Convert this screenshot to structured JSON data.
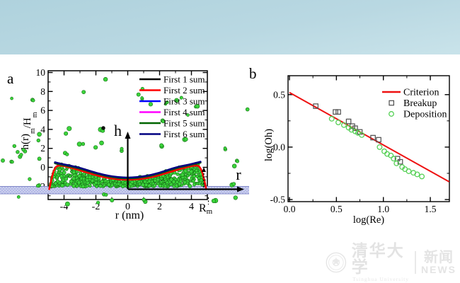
{
  "banner": {
    "color_top": "#afd2dd",
    "color_bottom": "#c9e3ea"
  },
  "colors": {
    "particle_fill": "#3bd43b",
    "particle_stroke": "#146e14",
    "band_fill": "#b3b9e6",
    "band_dot": "#e9ebf8",
    "band_edge": "#8288c8",
    "frame": "#000000",
    "criterion_red": "#ee1111",
    "breakup_gray": "#4d4d4d",
    "deposition_green": "#55d055"
  },
  "chart_data": [
    {
      "panel_label": "a",
      "type": "line",
      "xlabel": "r (nm)",
      "ylabel": "h(r)_m/H_m",
      "ylabel_parts": [
        [
          "h(r)",
          false
        ],
        [
          "m",
          true
        ],
        [
          "/H",
          false
        ],
        [
          "m",
          true
        ]
      ],
      "xlim": [
        -5,
        5
      ],
      "ylim": [
        -3.4,
        10.15
      ],
      "x_ticks": [
        "-4",
        "-2",
        "0",
        "2",
        "4"
      ],
      "x_tick_vals": [
        -4,
        -2,
        0,
        2,
        4
      ],
      "y_ticks": [
        "-2",
        "0",
        "2",
        "4",
        "6",
        "8",
        "10"
      ],
      "y_tick_vals": [
        -2,
        0,
        2,
        4,
        6,
        8,
        10
      ],
      "x_minor": [
        -3,
        -1,
        1,
        3
      ],
      "y_minor": [
        -3,
        -1,
        1,
        3,
        5,
        7,
        9
      ],
      "grid": false,
      "legend_position": "upper right",
      "legend": [
        {
          "label": "First 1 sum",
          "color": "#000000"
        },
        {
          "label": "First 2 sum",
          "color": "#ff0000"
        },
        {
          "label": "First 3 sum",
          "color": "#0000ff"
        },
        {
          "label": "First 4 sum",
          "color": "#ff00ff"
        },
        {
          "label": "First 5 sum",
          "color": "#006400"
        },
        {
          "label": "First 6 sum",
          "color": "#000080"
        }
      ],
      "shapes": {
        "bundle": {
          "x": [
            -4.57,
            -4.2,
            -3.6,
            -3.0,
            -2.4,
            -1.8,
            -1.2,
            -0.6,
            0,
            0.6,
            1.2,
            1.8,
            2.4,
            3.0,
            3.6,
            4.2,
            4.57
          ],
          "y": [
            0.46,
            0.3,
            0.1,
            -0.14,
            -0.44,
            -0.73,
            -0.96,
            -1.1,
            -1.15,
            -1.1,
            -0.96,
            -0.73,
            -0.42,
            -0.1,
            0.13,
            0.36,
            0.52
          ]
        },
        "rim": {
          "x": [
            -4.93,
            -4.83,
            -4.68,
            -4.5,
            -4.3,
            -4.0,
            -3.5,
            -3.0,
            -2.5,
            -2.0,
            -1.5,
            -1.0,
            -0.5,
            0,
            0.5,
            1.0,
            1.5,
            2.0,
            2.5,
            3.0,
            3.5,
            4.0,
            4.3,
            4.5,
            4.68,
            4.83,
            4.93
          ],
          "y": [
            -2.3,
            -1.55,
            -0.55,
            0.05,
            0.18,
            0.13,
            -0.08,
            -0.32,
            -0.57,
            -0.82,
            -1.03,
            -1.18,
            -1.27,
            -1.3,
            -1.27,
            -1.18,
            -1.03,
            -0.82,
            -0.57,
            -0.32,
            -0.08,
            0.13,
            0.18,
            0.05,
            -0.55,
            -1.55,
            -2.3
          ]
        }
      },
      "series": [
        {
          "name": "First 1 sum",
          "color": "#000000",
          "shape": "bundle",
          "dy": -0.03
        },
        {
          "name": "First 2 sum",
          "color": "#ff0000",
          "shape": "rim",
          "dy": 0
        },
        {
          "name": "First 3 sum",
          "color": "#0000ff",
          "shape": "bundle",
          "dy": 0.04
        },
        {
          "name": "First 4 sum",
          "color": "#ff00ff",
          "shape": "bundle",
          "dy": 0.01
        },
        {
          "name": "First 5 sum",
          "color": "#006400",
          "shape": "bundle",
          "dy": -0.01
        },
        {
          "name": "First 6 sum",
          "color": "#000080",
          "shape": "bundle",
          "dy": 0.07
        }
      ],
      "annotations": {
        "v_axis_label": "h",
        "h_axis_label": "r",
        "radius_label": "R",
        "radius_label_sub": "m"
      }
    },
    {
      "panel_label": "b",
      "type": "scatter",
      "xlabel": "log(Re)",
      "ylabel": "log(Oh)",
      "xlim": [
        -0.015,
        1.7
      ],
      "ylim": [
        -0.52,
        0.675
      ],
      "x_ticks": [
        "0.0",
        "0.5",
        "1.0",
        "1.5"
      ],
      "x_tick_vals": [
        0.0,
        0.5,
        1.0,
        1.5
      ],
      "y_ticks": [
        "-0.5",
        "0.0",
        "0.5"
      ],
      "y_tick_vals": [
        -0.5,
        0.0,
        0.5
      ],
      "x_minor": [
        0.25,
        0.75,
        1.25
      ],
      "y_minor": [
        -0.25,
        0.25
      ],
      "grid": false,
      "legend_position": "upper right",
      "legend": [
        {
          "label": "Criterion",
          "marker": "line",
          "color": "#ee1111"
        },
        {
          "label": "Breakup",
          "marker": "square",
          "color": "#4d4d4d"
        },
        {
          "label": "Deposition",
          "marker": "circle",
          "color": "#55d055"
        }
      ],
      "series": [
        {
          "name": "Criterion",
          "type": "line",
          "color": "#ee1111",
          "points": [
            [
              0,
              0.52
            ],
            [
              1.7,
              -0.33
            ]
          ]
        },
        {
          "name": "Breakup",
          "type": "scatter",
          "marker": "square-open",
          "color": "#4d4d4d",
          "points": [
            [
              0.28,
              0.39
            ],
            [
              0.49,
              0.335
            ],
            [
              0.52,
              0.335
            ],
            [
              0.63,
              0.245
            ],
            [
              0.67,
              0.2
            ],
            [
              0.7,
              0.18
            ],
            [
              0.75,
              0.145
            ],
            [
              0.89,
              0.09
            ],
            [
              0.95,
              0.07
            ],
            [
              1.15,
              -0.11
            ],
            [
              1.18,
              -0.14
            ]
          ]
        },
        {
          "name": "Deposition",
          "type": "scatter",
          "marker": "circle-open",
          "color": "#55d055",
          "points": [
            [
              0.45,
              0.27
            ],
            [
              0.52,
              0.235
            ],
            [
              0.58,
              0.21
            ],
            [
              0.63,
              0.185
            ],
            [
              0.66,
              0.165
            ],
            [
              0.7,
              0.15
            ],
            [
              0.73,
              0.135
            ],
            [
              0.77,
              0.115
            ],
            [
              0.96,
              0.0
            ],
            [
              1.01,
              -0.04
            ],
            [
              1.04,
              -0.065
            ],
            [
              1.08,
              -0.08
            ],
            [
              1.11,
              -0.11
            ],
            [
              1.14,
              -0.155
            ],
            [
              1.2,
              -0.19
            ],
            [
              1.23,
              -0.21
            ],
            [
              1.27,
              -0.23
            ],
            [
              1.32,
              -0.245
            ],
            [
              1.36,
              -0.26
            ],
            [
              1.41,
              -0.28
            ]
          ]
        }
      ]
    }
  ],
  "watermark": {
    "university_cn": "清华大学",
    "university_en": "Tsinghua University",
    "news_cn": "新闻",
    "news_en": "NEWS"
  }
}
